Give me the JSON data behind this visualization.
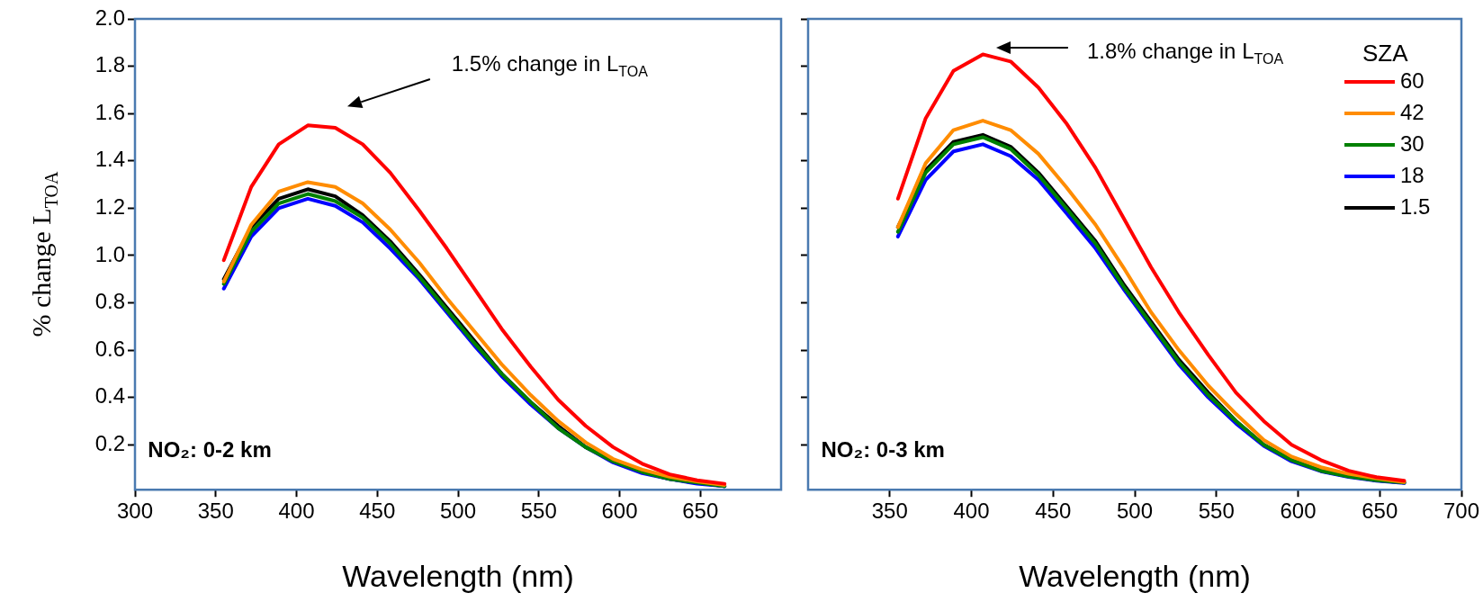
{
  "chart_data": [
    {
      "type": "line",
      "x": [
        355,
        372,
        389,
        407,
        424,
        441,
        458,
        476,
        493,
        510,
        527,
        545,
        562,
        579,
        596,
        614,
        631,
        648,
        665
      ],
      "series": [
        {
          "color": "#ff0000",
          "values": [
            0.98,
            1.29,
            1.47,
            1.55,
            1.54,
            1.47,
            1.35,
            1.19,
            1.03,
            0.86,
            0.69,
            0.53,
            0.39,
            0.28,
            0.19,
            0.12,
            0.075,
            0.05,
            0.035
          ]
        },
        {
          "color": "#ff8c00",
          "values": [
            0.89,
            1.13,
            1.27,
            1.31,
            1.29,
            1.22,
            1.11,
            0.97,
            0.82,
            0.68,
            0.54,
            0.41,
            0.3,
            0.21,
            0.14,
            0.095,
            0.065,
            0.045,
            0.03
          ]
        },
        {
          "color": "#008000",
          "values": [
            0.88,
            1.1,
            1.22,
            1.26,
            1.23,
            1.16,
            1.05,
            0.91,
            0.77,
            0.63,
            0.5,
            0.38,
            0.27,
            0.19,
            0.13,
            0.085,
            0.055,
            0.04,
            0.025
          ]
        },
        {
          "color": "#0000ff",
          "values": [
            0.86,
            1.08,
            1.2,
            1.24,
            1.21,
            1.14,
            1.03,
            0.9,
            0.76,
            0.62,
            0.49,
            0.37,
            0.27,
            0.19,
            0.125,
            0.08,
            0.055,
            0.035,
            0.025
          ]
        },
        {
          "color": "#000000",
          "values": [
            0.9,
            1.12,
            1.24,
            1.28,
            1.25,
            1.17,
            1.06,
            0.92,
            0.78,
            0.64,
            0.5,
            0.38,
            0.28,
            0.19,
            0.13,
            0.085,
            0.055,
            0.04,
            0.025
          ]
        }
      ],
      "xlabel": "Wavelength (nm)",
      "ylabel": "% change L$_{TOA}$",
      "xlim": [
        300,
        700
      ],
      "ylim": [
        0.01,
        2.0
      ],
      "xticks": [
        300,
        350,
        400,
        450,
        500,
        550,
        600,
        650
      ],
      "yticks": [
        0.2,
        0.4,
        0.6,
        0.8,
        {
          "value": 1,
          "label": "1.0"
        },
        1.2,
        1.4,
        1.6,
        1.8,
        {
          "value": 2,
          "label": "2.0"
        }
      ],
      "annotations": [
        "1.5% change in L$_{TOA}$",
        "NO₂: 0-2 km"
      ],
      "grid": false,
      "marker": "none",
      "legend": false
    },
    {
      "type": "line",
      "x": [
        355,
        372,
        389,
        407,
        424,
        441,
        458,
        476,
        493,
        510,
        527,
        545,
        562,
        579,
        596,
        614,
        631,
        648,
        665
      ],
      "series": [
        {
          "name": "60",
          "color": "#ff0000",
          "values": [
            1.24,
            1.58,
            1.78,
            1.85,
            1.82,
            1.71,
            1.56,
            1.37,
            1.16,
            0.95,
            0.76,
            0.58,
            0.42,
            0.3,
            0.2,
            0.135,
            0.09,
            0.063,
            0.048
          ]
        },
        {
          "name": "42",
          "color": "#ff8c00",
          "values": [
            1.12,
            1.39,
            1.53,
            1.57,
            1.53,
            1.43,
            1.29,
            1.13,
            0.95,
            0.76,
            0.6,
            0.45,
            0.33,
            0.22,
            0.15,
            0.105,
            0.077,
            0.058,
            0.042
          ]
        },
        {
          "name": "30",
          "color": "#008000",
          "values": [
            1.1,
            1.35,
            1.47,
            1.5,
            1.45,
            1.34,
            1.2,
            1.05,
            0.87,
            0.71,
            0.55,
            0.41,
            0.3,
            0.2,
            0.135,
            0.09,
            0.066,
            0.05,
            0.04
          ]
        },
        {
          "name": "18",
          "color": "#0000ff",
          "values": [
            1.08,
            1.32,
            1.44,
            1.47,
            1.42,
            1.32,
            1.18,
            1.03,
            0.86,
            0.7,
            0.54,
            0.4,
            0.29,
            0.195,
            0.13,
            0.088,
            0.064,
            0.048,
            0.038
          ]
        },
        {
          "name": "1.5",
          "color": "#000000",
          "values": [
            1.12,
            1.36,
            1.48,
            1.51,
            1.46,
            1.35,
            1.21,
            1.06,
            0.88,
            0.72,
            0.56,
            0.42,
            0.3,
            0.2,
            0.135,
            0.09,
            0.067,
            0.05,
            0.04
          ]
        }
      ],
      "xlabel": "Wavelength (nm)",
      "xlim": [
        300,
        700
      ],
      "ylim": [
        0.01,
        2.0
      ],
      "xticks": [
        350,
        400,
        450,
        500,
        550,
        600,
        650,
        700
      ],
      "yticks": [
        0.2,
        0.4,
        0.6,
        0.8,
        1,
        1.2,
        1.4,
        1.6,
        1.8,
        2
      ],
      "tick_labels": "x",
      "annotations": [
        "1.8% change in L$_{TOA}$",
        "NO₂: 0-3 km"
      ],
      "grid": false,
      "marker": "none",
      "legend": "top right",
      "legend_title": "SZA"
    }
  ]
}
